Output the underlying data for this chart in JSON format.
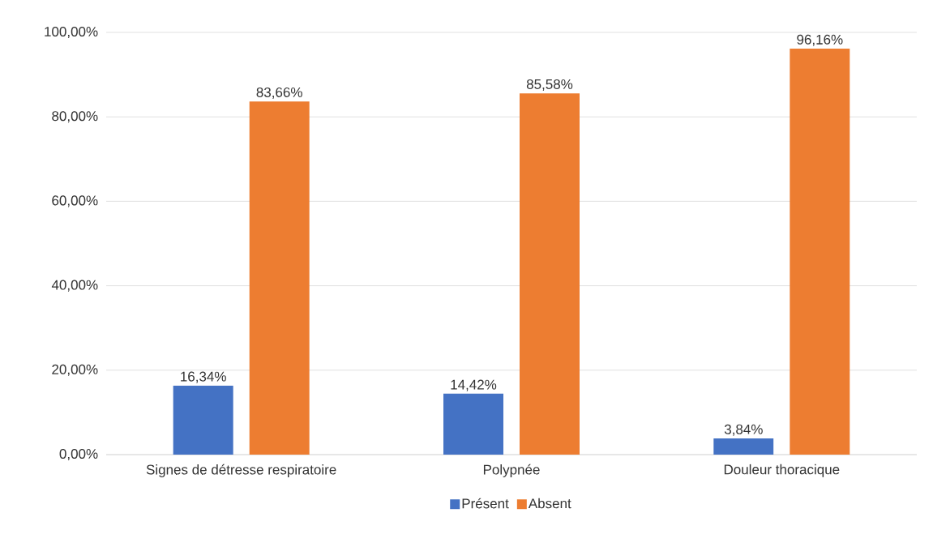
{
  "chart_data": {
    "type": "bar",
    "categories": [
      "Signes de détresse respiratoire",
      "Polypnée",
      "Douleur thoracique"
    ],
    "series": [
      {
        "name": "Présent",
        "color": "#4472c4",
        "values": [
          16.34,
          14.42,
          3.84
        ],
        "value_labels": [
          "16,34%",
          "14,42%",
          "3,84%"
        ]
      },
      {
        "name": "Absent",
        "color": "#ed7d31",
        "values": [
          83.66,
          85.58,
          96.16
        ],
        "value_labels": [
          "83,66%",
          "85,58%",
          "96,16%"
        ]
      }
    ],
    "ylim": [
      0,
      100
    ],
    "yticks": [
      {
        "value": 0,
        "label": "0,00%"
      },
      {
        "value": 20,
        "label": "20,00%"
      },
      {
        "value": 40,
        "label": "40,00%"
      },
      {
        "value": 60,
        "label": "60,00%"
      },
      {
        "value": 80,
        "label": "80,00%"
      },
      {
        "value": 100,
        "label": "100,00%"
      }
    ],
    "grid": "y",
    "legend": "bottom"
  }
}
